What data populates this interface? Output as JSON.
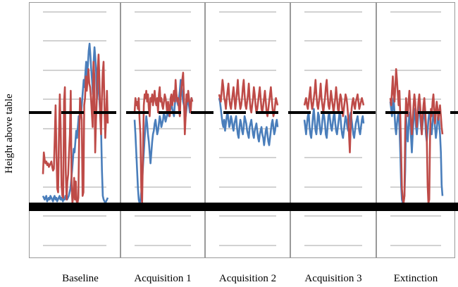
{
  "chart_data": {
    "type": "line",
    "title": "",
    "xlabel": "",
    "ylabel": "Height above table",
    "ylim": [
      0,
      100
    ],
    "grid": true,
    "colors": {
      "series_blue": "#4a7ebb",
      "series_red": "#be4b48",
      "reference": "#000000",
      "gridline": "#a6a6a6",
      "panel_border": "#999999"
    },
    "reference_lines": {
      "target_height": 52,
      "table_level": 0
    },
    "categories": [
      "Baseline",
      "Acquisition 1",
      "Acquisition 2",
      "Acquisition 3",
      "Extinction"
    ],
    "panels": [
      {
        "label": "Baseline",
        "series": [
          {
            "name": "blue",
            "values": [
              6,
              5,
              4,
              5,
              6,
              3,
              4,
              5,
              4,
              6,
              5,
              4,
              3,
              5,
              6,
              4,
              5,
              3,
              4,
              5,
              6,
              4,
              5,
              4,
              3,
              5,
              4,
              6,
              5,
              4,
              5,
              6,
              8,
              10,
              15,
              20,
              26,
              32,
              30,
              36,
              42,
              38,
              44,
              50,
              48,
              56,
              52,
              58,
              64,
              70,
              66,
              74,
              80,
              72,
              78,
              86,
              90,
              84,
              76,
              70,
              62,
              80,
              88,
              82,
              74,
              60,
              72,
              66,
              58,
              50,
              40,
              20,
              6,
              4,
              3,
              2,
              3,
              4,
              5
            ]
          },
          {
            "name": "red",
            "values": [
              18,
              30,
              26,
              24,
              25,
              23,
              24,
              22,
              23,
              24,
              25,
              22,
              20,
              21,
              38,
              56,
              30,
              10,
              8,
              40,
              62,
              44,
              12,
              6,
              5,
              58,
              66,
              20,
              4,
              14,
              18,
              30,
              40,
              64,
              12,
              2,
              6,
              16,
              4,
              14,
              3,
              2,
              5,
              40,
              60,
              54,
              48,
              6,
              8,
              56,
              60,
              72,
              64,
              70,
              76,
              68,
              66,
              60,
              52,
              44,
              80,
              72,
              30,
              48,
              60,
              76,
              84,
              70,
              50,
              40,
              60,
              74,
              80,
              56,
              38,
              50,
              64,
              46
            ]
          }
        ]
      },
      {
        "label": "Acquisition 1",
        "series": [
          {
            "name": "blue",
            "values": [
              48,
              40,
              30,
              20,
              10,
              4,
              2,
              3,
              8,
              14,
              22,
              30,
              38,
              44,
              50,
              46,
              40,
              36,
              30,
              24,
              30,
              36,
              40,
              42,
              46,
              48,
              44,
              40,
              42,
              46,
              50,
              48,
              44,
              46,
              48,
              52,
              50,
              47,
              49,
              51,
              53,
              50,
              52,
              55,
              58,
              54,
              52,
              50,
              56,
              60,
              62,
              58,
              56,
              60,
              64,
              70,
              66,
              62,
              58,
              56,
              52,
              50,
              54,
              58,
              60,
              56,
              52,
              56,
              60,
              58
            ]
          },
          {
            "name": "red",
            "values": [
              52,
              60,
              56,
              58,
              54,
              60,
              48,
              40,
              10,
              2,
              30,
              56,
              62,
              60,
              64,
              58,
              62,
              54,
              50,
              60,
              58,
              62,
              56,
              60,
              64,
              58,
              56,
              60,
              52,
              62,
              66,
              58,
              60,
              56,
              54,
              58,
              62,
              60,
              56,
              52,
              58,
              54,
              50,
              60,
              62,
              56,
              60,
              64,
              58,
              70,
              62,
              58,
              60,
              54,
              50,
              62,
              66,
              70,
              74,
              60,
              40,
              50,
              62,
              58,
              64,
              60,
              56,
              52,
              60,
              58
            ]
          }
        ]
      },
      {
        "label": "Acquisition 2",
        "series": [
          {
            "name": "blue",
            "values": [
              60,
              58,
              54,
              50,
              46,
              44,
              48,
              42,
              46,
              50,
              52,
              48,
              44,
              46,
              50,
              48,
              44,
              42,
              46,
              48,
              50,
              44,
              40,
              38,
              44,
              48,
              46,
              42,
              40,
              44,
              50,
              48,
              46,
              42,
              40,
              38,
              44,
              46,
              48,
              44,
              40,
              38,
              42,
              44,
              46,
              42,
              38,
              36,
              40,
              42,
              44,
              40,
              38,
              34,
              38,
              42,
              44,
              40,
              36,
              34,
              38,
              42,
              46,
              48,
              44,
              40,
              42,
              46,
              48,
              44
            ]
          },
          {
            "name": "red",
            "values": [
              62,
              60,
              58,
              64,
              70,
              66,
              60,
              58,
              54,
              60,
              64,
              68,
              60,
              56,
              54,
              58,
              62,
              66,
              60,
              54,
              58,
              64,
              70,
              62,
              58,
              54,
              56,
              60,
              66,
              70,
              62,
              56,
              54,
              58,
              62,
              68,
              60,
              54,
              52,
              56,
              60,
              66,
              62,
              56,
              52,
              54,
              58,
              62,
              66,
              60,
              54,
              52,
              56,
              60,
              64,
              58,
              52,
              50,
              54,
              58,
              62,
              66,
              60,
              54,
              50,
              52,
              56,
              60,
              58,
              56
            ]
          }
        ]
      },
      {
        "label": "Acquisition 3",
        "series": [
          {
            "name": "blue",
            "values": [
              48,
              44,
              40,
              46,
              50,
              52,
              44,
              40,
              38,
              44,
              50,
              54,
              48,
              42,
              40,
              46,
              52,
              50,
              44,
              40,
              42,
              48,
              52,
              50,
              46,
              40,
              38,
              44,
              50,
              52,
              48,
              44,
              42,
              46,
              50,
              52,
              46,
              42,
              40,
              44,
              48,
              52,
              50,
              44,
              40,
              38,
              42,
              46,
              50,
              48,
              44,
              42,
              46,
              50,
              52,
              48,
              44,
              40,
              38,
              42,
              46,
              48,
              50,
              46,
              42,
              40,
              44,
              48,
              50,
              46
            ]
          },
          {
            "name": "red",
            "values": [
              56,
              58,
              60,
              56,
              54,
              58,
              62,
              66,
              58,
              54,
              56,
              60,
              64,
              70,
              62,
              56,
              54,
              58,
              62,
              68,
              60,
              56,
              52,
              56,
              60,
              66,
              70,
              62,
              56,
              54,
              58,
              64,
              60,
              56,
              52,
              56,
              60,
              66,
              60,
              54,
              52,
              58,
              62,
              60,
              54,
              50,
              54,
              58,
              62,
              60,
              56,
              50,
              40,
              30,
              44,
              54,
              58,
              60,
              56,
              54,
              58,
              60,
              62,
              58,
              54,
              56,
              58,
              60,
              58,
              56
            ]
          }
        ]
      },
      {
        "label": "Extinction",
        "series": [
          {
            "name": "blue",
            "values": [
              58,
              54,
              50,
              56,
              60,
              52,
              44,
              40,
              46,
              50,
              52,
              44,
              30,
              12,
              4,
              2,
              3,
              6,
              20,
              50,
              42,
              36,
              44,
              52,
              48,
              38,
              30,
              40,
              48,
              54,
              50,
              44,
              40,
              46,
              52,
              56,
              50,
              44,
              40,
              46,
              50,
              54,
              48,
              40,
              36,
              42,
              48,
              52,
              50,
              44,
              40,
              46,
              52,
              50,
              44,
              38,
              42,
              48,
              52,
              46,
              40,
              30,
              12,
              6
            ]
          },
          {
            "name": "red",
            "values": [
              60,
              56,
              64,
              72,
              62,
              58,
              66,
              76,
              70,
              62,
              56,
              64,
              50,
              30,
              10,
              4,
              2,
              6,
              44,
              60,
              54,
              50,
              58,
              64,
              56,
              46,
              40,
              48,
              56,
              62,
              58,
              50,
              44,
              52,
              58,
              62,
              56,
              48,
              40,
              50,
              56,
              60,
              54,
              46,
              38,
              12,
              2,
              4,
              40,
              54,
              50,
              58,
              62,
              54,
              46,
              52,
              58,
              54,
              48,
              52,
              56,
              50,
              44,
              40
            ]
          }
        ]
      }
    ]
  }
}
